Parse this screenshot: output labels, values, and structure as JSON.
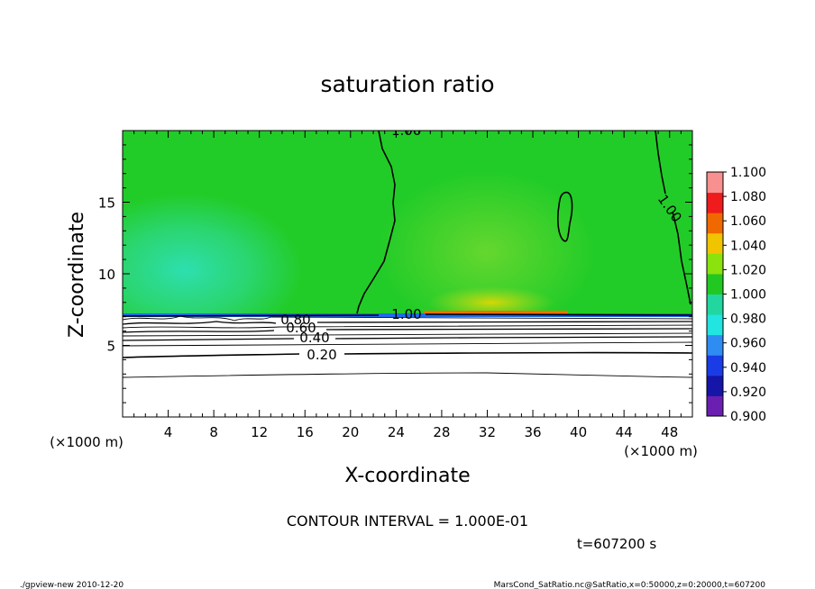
{
  "chart_data": {
    "type": "heatmap",
    "title": "saturation ratio",
    "xlabel": "X-coordinate",
    "ylabel": "Z-coordinate",
    "x_unit_left": "(×1000 m)",
    "x_unit_right": "(×1000 m)",
    "xlim": [
      0,
      50
    ],
    "ylim": [
      0,
      20
    ],
    "x_ticks": [
      4,
      8,
      12,
      16,
      20,
      24,
      28,
      32,
      36,
      40,
      44,
      48
    ],
    "y_ticks": [
      5,
      10,
      15
    ],
    "colorbar": {
      "levels": [
        "0.900",
        "0.920",
        "0.940",
        "0.960",
        "0.980",
        "1.000",
        "1.020",
        "1.040",
        "1.060",
        "1.080",
        "1.100"
      ],
      "colors": [
        "#6a1fb0",
        "#1515a8",
        "#1a3ce6",
        "#2f8cf2",
        "#22e4e0",
        "#22d6a0",
        "#22c822",
        "#8ce20c",
        "#f0c400",
        "#f06800",
        "#ee1c1c",
        "#f89090"
      ]
    },
    "contour_labels": [
      "1.00",
      "1.00",
      "0.80",
      "0.60",
      "0.40",
      "0.20"
    ],
    "contour_interval_text": "CONTOUR INTERVAL = 1.000E-01",
    "time_text": "t=607200 s",
    "footer_left": "./gpview-new   2010-12-20",
    "footer_right": "MarsCond_SatRatio.nc@SatRatio,x=0:50000,z=0:20000,t=607200"
  }
}
